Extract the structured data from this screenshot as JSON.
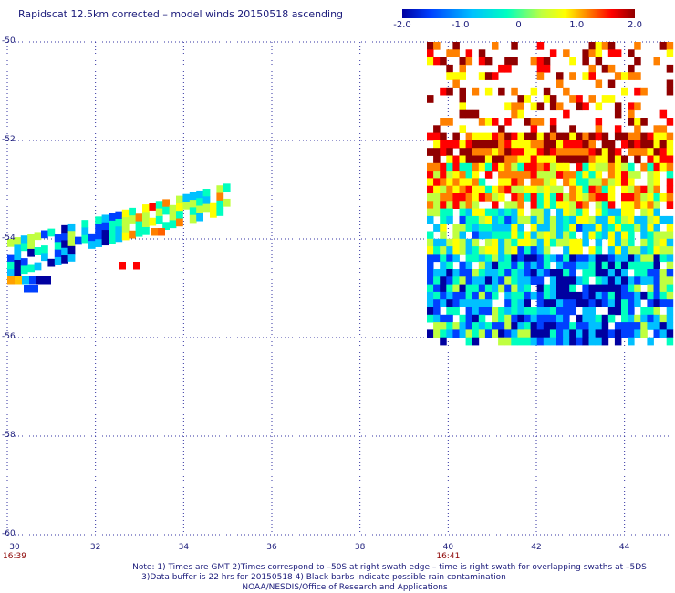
{
  "title": "Rapidscat 12.5km corrected – model winds 20150518 ascending",
  "colorbar": {
    "labels": [
      "-2.0",
      "-1.0",
      "0",
      "1.0",
      "2.0"
    ],
    "values": [
      -2.0,
      -1.0,
      0,
      1.0,
      2.0
    ],
    "range": [
      -2.0,
      2.0
    ],
    "colors": [
      "#0000a0",
      "#0040ff",
      "#00c0ff",
      "#00ffc0",
      "#c0ff40",
      "#ffff00",
      "#ff8000",
      "#ff0000",
      "#900000"
    ]
  },
  "map": {
    "lon_range": [
      30,
      45
    ],
    "lat_range": [
      -60,
      -50
    ],
    "x_ticks": [
      {
        "value": 30,
        "label": "30"
      },
      {
        "value": 32,
        "label": "32"
      },
      {
        "value": 34,
        "label": "34"
      },
      {
        "value": 36,
        "label": "36"
      },
      {
        "value": 38,
        "label": "38"
      },
      {
        "value": 40,
        "label": "40"
      },
      {
        "value": 42,
        "label": "42"
      },
      {
        "value": 44,
        "label": "44"
      }
    ],
    "y_ticks": [
      {
        "value": -50,
        "label": "-50"
      },
      {
        "value": -52,
        "label": "-52"
      },
      {
        "value": -54,
        "label": "-54"
      },
      {
        "value": -56,
        "label": "-56"
      },
      {
        "value": -58,
        "label": "-58"
      },
      {
        "value": -60,
        "label": "-60"
      }
    ],
    "time_labels": [
      {
        "lon": 30,
        "label": "16:39"
      },
      {
        "lon": 40,
        "label": "16:41"
      }
    ],
    "grid": "dotted"
  },
  "notes": [
    "Note: 1) Times are GMT 2)Times correspond to –50S at right swath edge – time is right swath for overlapping swaths at –5DS",
    "3)Data buffer is 22 hrs for 20150518 4) Black barbs indicate possible rain contamination",
    "NOAA/NESDIS/Office of Research and Applications"
  ]
}
